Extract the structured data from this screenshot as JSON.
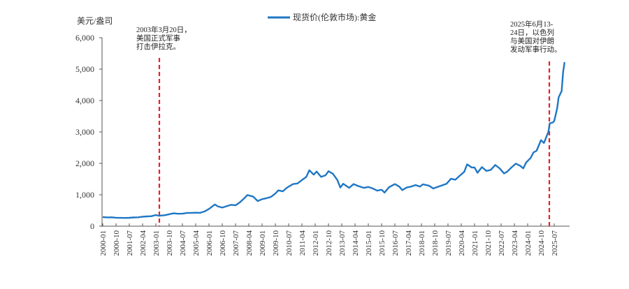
{
  "chart_data": {
    "type": "line",
    "title": "",
    "ylabel": "美元/盎司",
    "xlabel": "",
    "ylim": [
      0,
      6000
    ],
    "yticks": [
      0,
      1000,
      2000,
      3000,
      4000,
      5000,
      6000
    ],
    "ytick_labels": [
      "0",
      "1,000",
      "2,000",
      "3,000",
      "4,000",
      "5,000",
      "6,000"
    ],
    "xtick_labels": [
      "2000-01",
      "2000-10",
      "2001-07",
      "2002-04",
      "2003-01",
      "2003-10",
      "2004-07",
      "2005-04",
      "2006-01",
      "2006-10",
      "2007-07",
      "2008-04",
      "2009-01",
      "2009-10",
      "2010-07",
      "2011-04",
      "2012-01",
      "2012-10",
      "2013-07",
      "2014-04",
      "2015-01",
      "2015-10",
      "2016-07",
      "2017-04",
      "2018-01",
      "2018-10",
      "2019-07",
      "2020-04",
      "2021-01",
      "2021-10",
      "2022-07",
      "2023-04",
      "2024-01",
      "2024-10",
      "2025-07"
    ],
    "grid": false,
    "legend_position": "top-center",
    "series": [
      {
        "name": "现货价(伦敦市场):黄金",
        "color": "#1f77c4",
        "points": [
          [
            "2000-01",
            288
          ],
          [
            "2000-04",
            280
          ],
          [
            "2000-07",
            282
          ],
          [
            "2000-10",
            270
          ],
          [
            "2001-01",
            265
          ],
          [
            "2001-04",
            262
          ],
          [
            "2001-07",
            266
          ],
          [
            "2001-10",
            278
          ],
          [
            "2002-01",
            282
          ],
          [
            "2002-04",
            302
          ],
          [
            "2002-07",
            312
          ],
          [
            "2002-10",
            318
          ],
          [
            "2003-01",
            355
          ],
          [
            "2003-03",
            330
          ],
          [
            "2003-07",
            348
          ],
          [
            "2003-10",
            380
          ],
          [
            "2004-01",
            410
          ],
          [
            "2004-04",
            395
          ],
          [
            "2004-07",
            398
          ],
          [
            "2004-10",
            420
          ],
          [
            "2005-01",
            425
          ],
          [
            "2005-04",
            428
          ],
          [
            "2005-07",
            425
          ],
          [
            "2005-10",
            470
          ],
          [
            "2006-01",
            550
          ],
          [
            "2006-05",
            690
          ],
          [
            "2006-07",
            630
          ],
          [
            "2006-10",
            590
          ],
          [
            "2007-01",
            635
          ],
          [
            "2007-04",
            680
          ],
          [
            "2007-07",
            665
          ],
          [
            "2007-10",
            760
          ],
          [
            "2008-01",
            890
          ],
          [
            "2008-03",
            990
          ],
          [
            "2008-07",
            940
          ],
          [
            "2008-10",
            800
          ],
          [
            "2009-01",
            860
          ],
          [
            "2009-04",
            890
          ],
          [
            "2009-07",
            930
          ],
          [
            "2009-10",
            1040
          ],
          [
            "2009-12",
            1140
          ],
          [
            "2010-03",
            1110
          ],
          [
            "2010-06",
            1230
          ],
          [
            "2010-10",
            1340
          ],
          [
            "2011-01",
            1360
          ],
          [
            "2011-04",
            1470
          ],
          [
            "2011-07",
            1570
          ],
          [
            "2011-09",
            1780
          ],
          [
            "2011-12",
            1640
          ],
          [
            "2012-02",
            1740
          ],
          [
            "2012-05",
            1570
          ],
          [
            "2012-08",
            1620
          ],
          [
            "2012-10",
            1750
          ],
          [
            "2013-01",
            1670
          ],
          [
            "2013-04",
            1470
          ],
          [
            "2013-06",
            1230
          ],
          [
            "2013-08",
            1350
          ],
          [
            "2013-12",
            1220
          ],
          [
            "2014-03",
            1340
          ],
          [
            "2014-06",
            1280
          ],
          [
            "2014-10",
            1220
          ],
          [
            "2015-01",
            1250
          ],
          [
            "2015-04",
            1200
          ],
          [
            "2015-07",
            1130
          ],
          [
            "2015-10",
            1160
          ],
          [
            "2015-12",
            1070
          ],
          [
            "2016-03",
            1240
          ],
          [
            "2016-07",
            1340
          ],
          [
            "2016-10",
            1260
          ],
          [
            "2016-12",
            1150
          ],
          [
            "2017-03",
            1230
          ],
          [
            "2017-06",
            1260
          ],
          [
            "2017-09",
            1310
          ],
          [
            "2017-12",
            1260
          ],
          [
            "2018-02",
            1330
          ],
          [
            "2018-06",
            1290
          ],
          [
            "2018-09",
            1200
          ],
          [
            "2018-12",
            1250
          ],
          [
            "2019-03",
            1300
          ],
          [
            "2019-06",
            1350
          ],
          [
            "2019-09",
            1510
          ],
          [
            "2019-12",
            1480
          ],
          [
            "2020-03",
            1610
          ],
          [
            "2020-06",
            1730
          ],
          [
            "2020-08",
            1970
          ],
          [
            "2020-11",
            1870
          ],
          [
            "2021-01",
            1870
          ],
          [
            "2021-03",
            1700
          ],
          [
            "2021-06",
            1880
          ],
          [
            "2021-09",
            1760
          ],
          [
            "2021-12",
            1790
          ],
          [
            "2022-03",
            1950
          ],
          [
            "2022-06",
            1840
          ],
          [
            "2022-09",
            1680
          ],
          [
            "2022-11",
            1730
          ],
          [
            "2023-02",
            1870
          ],
          [
            "2023-05",
            1990
          ],
          [
            "2023-08",
            1920
          ],
          [
            "2023-10",
            1840
          ],
          [
            "2023-12",
            2030
          ],
          [
            "2024-03",
            2170
          ],
          [
            "2024-05",
            2350
          ],
          [
            "2024-07",
            2400
          ],
          [
            "2024-09",
            2620
          ],
          [
            "2024-10",
            2740
          ],
          [
            "2024-12",
            2650
          ],
          [
            "2025-01",
            2760
          ],
          [
            "2025-03",
            3000
          ],
          [
            "2025-04",
            3280
          ],
          [
            "2025-06",
            3300
          ],
          [
            "2025-07",
            3350
          ],
          [
            "2025-09",
            3750
          ],
          [
            "2025-10",
            4100
          ],
          [
            "2025-12",
            4300
          ],
          [
            "2026-01",
            4900
          ],
          [
            "2026-02",
            5220
          ]
        ]
      }
    ],
    "annotations": [
      {
        "id": "iraq-war",
        "date": "2003-03",
        "line_style": "red-dashed",
        "color": "#e8202a",
        "text_lines": [
          "2003年3月20日，",
          "美国正式军事",
          "打击伊拉克。"
        ]
      },
      {
        "id": "israel-iran",
        "date": "2025-06",
        "line_style": "red-dashed",
        "color": "#e8202a",
        "text_lines": [
          "2025年6月13-",
          "24日，以色列",
          "与美国对伊朗",
          "发动军事行动。"
        ]
      }
    ]
  },
  "legend": {
    "label": "现货价(伦敦市场):黄金",
    "color": "#1f77c4"
  },
  "axis": {
    "y_unit": "美元/盎司"
  }
}
